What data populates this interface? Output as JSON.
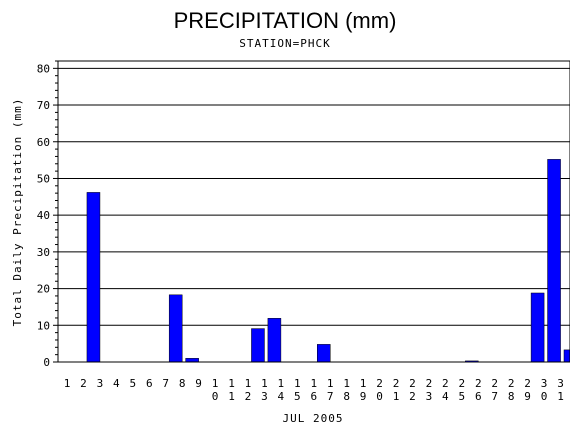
{
  "chart_data": {
    "type": "bar",
    "title": "PRECIPITATION (mm)",
    "subtitle": "STATION=PHCK",
    "xlabel": "JUL 2005",
    "ylabel": "Total Daily Precipitation (mm)",
    "ylim": [
      0,
      82
    ],
    "yticks": [
      0,
      10,
      20,
      30,
      40,
      50,
      60,
      70,
      80
    ],
    "grid": "horizontal",
    "bar_color": "#0000ff",
    "categories": [
      "1",
      "2",
      "3",
      "4",
      "5",
      "6",
      "7",
      "8",
      "9",
      "10",
      "11",
      "12",
      "13",
      "14",
      "15",
      "16",
      "17",
      "18",
      "19",
      "20",
      "21",
      "22",
      "23",
      "24",
      "25",
      "26",
      "27",
      "28",
      "29",
      "30",
      "31"
    ],
    "values": [
      0,
      46.2,
      0,
      0,
      0,
      0,
      18.3,
      1.0,
      0,
      0,
      0,
      9.1,
      11.9,
      0,
      0,
      4.8,
      0,
      0,
      0,
      0,
      0,
      0,
      0,
      0,
      0.3,
      0,
      0,
      0,
      18.8,
      55.2,
      3.3
    ]
  }
}
